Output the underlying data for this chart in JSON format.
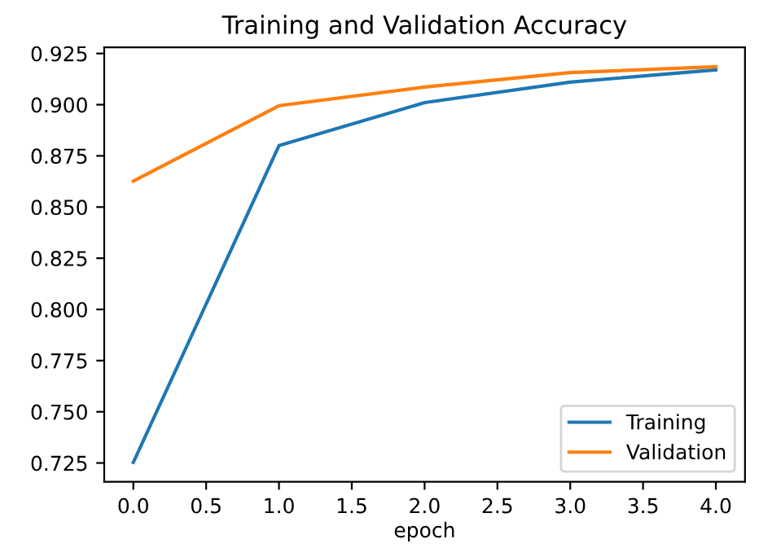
{
  "chart_data": {
    "type": "line",
    "title": "Training and Validation Accuracy",
    "xlabel": "epoch",
    "x": [
      0,
      1,
      2,
      3,
      4
    ],
    "series": [
      {
        "name": "Training",
        "color": "#1f77b4",
        "values": [
          0.7253,
          0.88,
          0.901,
          0.911,
          0.917
        ]
      },
      {
        "name": "Validation",
        "color": "#ff7f0e",
        "values": [
          0.8627,
          0.8995,
          0.9086,
          0.9157,
          0.9185
        ]
      }
    ],
    "xlim": [
      -0.2,
      4.2
    ],
    "xticks": [
      {
        "value": 0,
        "label": "0.0"
      },
      0.5,
      {
        "value": 1,
        "label": "1.0"
      },
      1.5,
      {
        "value": 2,
        "label": "2.0"
      },
      2.5,
      {
        "value": 3,
        "label": "3.0"
      },
      3.5,
      {
        "value": 4,
        "label": "4.0"
      }
    ],
    "ylim": [
      0.7158,
      0.928
    ],
    "yticks": [
      0.725,
      {
        "value": 0.75,
        "label": "0.750"
      },
      0.775,
      {
        "value": 0.8,
        "label": "0.800"
      },
      0.825,
      {
        "value": 0.85,
        "label": "0.850"
      },
      0.875,
      {
        "value": 0.9,
        "label": "0.900"
      },
      0.925
    ],
    "legend": "lower right",
    "grid": false
  }
}
